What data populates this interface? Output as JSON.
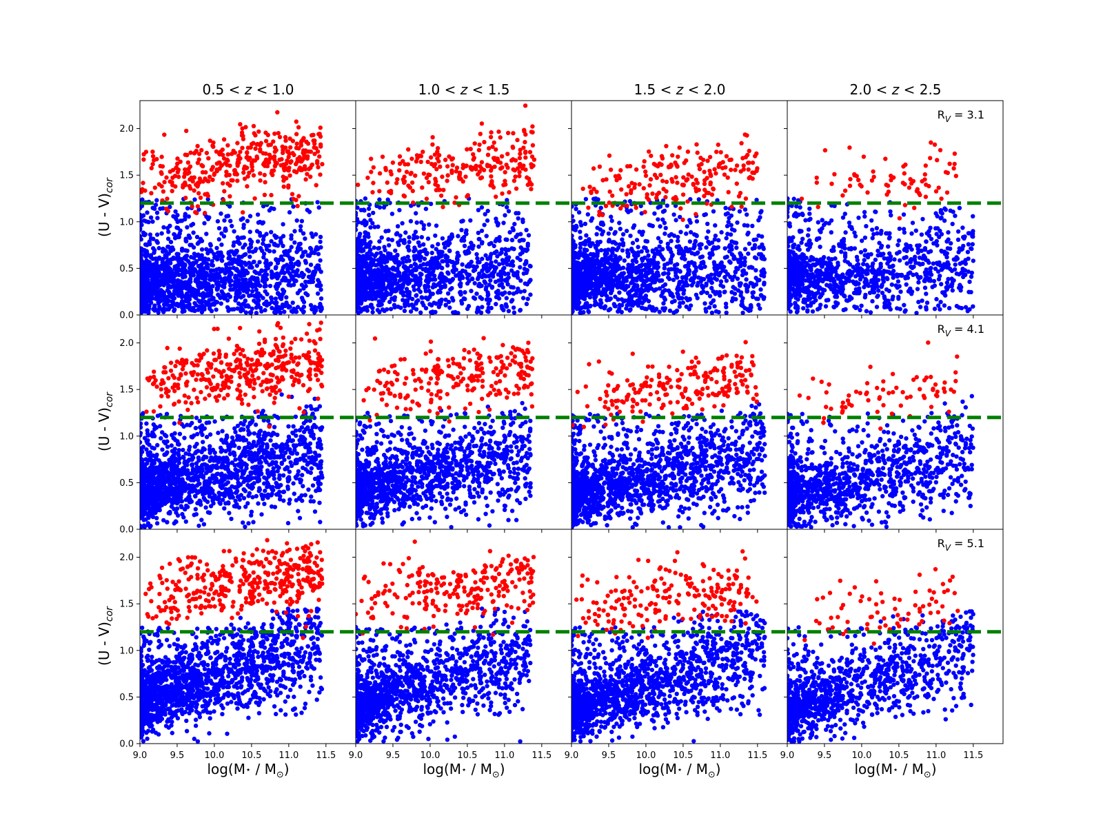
{
  "figure": {
    "column_titles": [
      {
        "lo": "0.5 < ",
        "z": "z",
        "hi": " < 1.0"
      },
      {
        "lo": "1.0 < ",
        "z": "z",
        "hi": " < 1.5"
      },
      {
        "lo": "1.5 < ",
        "z": "z",
        "hi": " < 2.0"
      },
      {
        "lo": "2.0 < ",
        "z": "z",
        "hi": " < 2.5"
      }
    ],
    "row_labels": [
      {
        "base": "R",
        "sub": "V",
        "value": " = 3.1"
      },
      {
        "base": "R",
        "sub": "V",
        "value": " = 4.1"
      },
      {
        "base": "R",
        "sub": "V",
        "value": " = 5.1"
      }
    ],
    "ylabel": {
      "base": "(U - V)",
      "sub": "cor"
    },
    "xlabel": {
      "pre": "log(M",
      "star": "⋆",
      "mid": " / M",
      "sun": "⊙",
      "post": ")"
    },
    "x_ticks": [
      "9.0",
      "9.5",
      "10.0",
      "10.5",
      "11.0",
      "11.5"
    ],
    "y_ticks": [
      "0.0",
      "0.5",
      "1.0",
      "1.5",
      "2.0"
    ]
  },
  "chart_data": {
    "type": "scatter",
    "layout": {
      "rows": 3,
      "cols": 4
    },
    "xlim": [
      9.0,
      11.9
    ],
    "ylim": [
      0.0,
      2.3
    ],
    "x_tick_values": [
      9.0,
      9.5,
      10.0,
      10.5,
      11.0,
      11.5
    ],
    "y_tick_values": [
      0.0,
      0.5,
      1.0,
      1.5,
      2.0
    ],
    "threshold_line": {
      "y": 1.2,
      "color": "#008000",
      "style": "dashed"
    },
    "colors": {
      "quiescent": "#ff0000",
      "star_forming": "#0000ff"
    },
    "panels": [
      {
        "row": 0,
        "col": 0,
        "n_blue": 1700,
        "n_red": 380,
        "blue_center": [
          9.6,
          0.35
        ],
        "red_mean_y": 1.6,
        "red_xrange": [
          9.0,
          11.45
        ],
        "max_x": 11.45
      },
      {
        "row": 0,
        "col": 1,
        "n_blue": 1300,
        "n_red": 230,
        "blue_center": [
          9.6,
          0.4
        ],
        "red_mean_y": 1.55,
        "red_xrange": [
          9.0,
          11.4
        ],
        "max_x": 11.35
      },
      {
        "row": 0,
        "col": 2,
        "n_blue": 1500,
        "n_red": 200,
        "blue_center": [
          9.6,
          0.4
        ],
        "red_mean_y": 1.45,
        "red_xrange": [
          9.0,
          11.5
        ],
        "max_x": 11.6
      },
      {
        "row": 0,
        "col": 3,
        "n_blue": 1100,
        "n_red": 70,
        "blue_center": [
          9.7,
          0.4
        ],
        "red_mean_y": 1.4,
        "red_xrange": [
          9.1,
          11.3
        ],
        "max_x": 11.5
      },
      {
        "row": 1,
        "col": 0,
        "n_blue": 1700,
        "n_red": 380,
        "blue_center": [
          9.6,
          0.5
        ],
        "red_mean_y": 1.65,
        "red_xrange": [
          9.0,
          11.45
        ],
        "max_x": 11.45
      },
      {
        "row": 1,
        "col": 1,
        "n_blue": 1300,
        "n_red": 230,
        "blue_center": [
          9.6,
          0.5
        ],
        "red_mean_y": 1.6,
        "red_xrange": [
          9.0,
          11.4
        ],
        "max_x": 11.35
      },
      {
        "row": 1,
        "col": 2,
        "n_blue": 1500,
        "n_red": 200,
        "blue_center": [
          9.6,
          0.45
        ],
        "red_mean_y": 1.5,
        "red_xrange": [
          9.0,
          11.5
        ],
        "max_x": 11.6
      },
      {
        "row": 1,
        "col": 3,
        "n_blue": 1100,
        "n_red": 70,
        "blue_center": [
          9.7,
          0.45
        ],
        "red_mean_y": 1.45,
        "red_xrange": [
          9.1,
          11.3
        ],
        "max_x": 11.5
      },
      {
        "row": 2,
        "col": 0,
        "n_blue": 1700,
        "n_red": 380,
        "blue_center": [
          9.6,
          0.6
        ],
        "red_mean_y": 1.7,
        "red_xrange": [
          9.0,
          11.45
        ],
        "max_x": 11.45
      },
      {
        "row": 2,
        "col": 1,
        "n_blue": 1300,
        "n_red": 230,
        "blue_center": [
          9.6,
          0.55
        ],
        "red_mean_y": 1.65,
        "red_xrange": [
          9.0,
          11.4
        ],
        "max_x": 11.35
      },
      {
        "row": 2,
        "col": 2,
        "n_blue": 1500,
        "n_red": 200,
        "blue_center": [
          9.6,
          0.5
        ],
        "red_mean_y": 1.55,
        "red_xrange": [
          9.0,
          11.5
        ],
        "max_x": 11.6
      },
      {
        "row": 2,
        "col": 3,
        "n_blue": 1100,
        "n_red": 70,
        "blue_center": [
          9.7,
          0.5
        ],
        "red_mean_y": 1.45,
        "red_xrange": [
          9.1,
          11.3
        ],
        "max_x": 11.5
      }
    ]
  }
}
